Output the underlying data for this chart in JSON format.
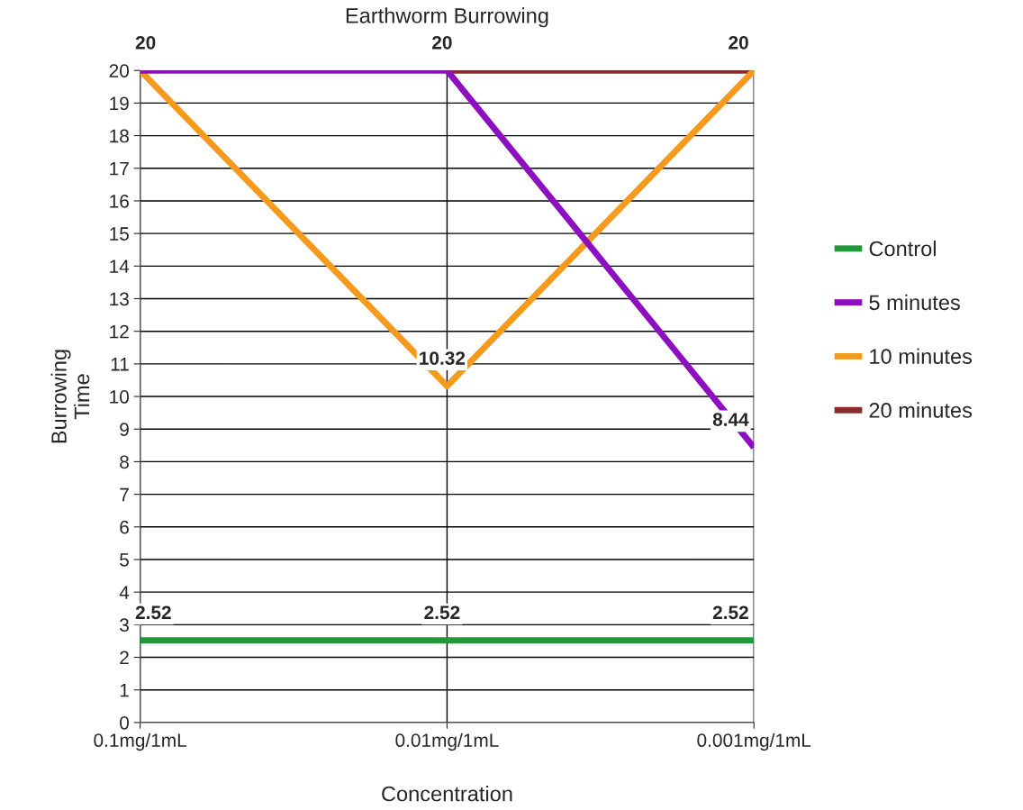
{
  "chart_data": {
    "type": "line",
    "title": "Earthworm Burrowing",
    "xlabel": "Concentration",
    "ylabel": "Burrowing\nTime",
    "categories": [
      "0.1mg/1mL",
      "0.01mg/1mL",
      "0.001mg/1mL"
    ],
    "series": [
      {
        "name": "Control",
        "color": "#1e9a3c",
        "values": [
          2.52,
          2.52,
          2.52
        ],
        "value_labels": [
          "2.52",
          "2.52",
          "2.52"
        ]
      },
      {
        "name": "5 minutes",
        "color": "#8e0fc0",
        "values": [
          20,
          20,
          8.44
        ],
        "value_labels": [
          "20",
          null,
          "8.44"
        ]
      },
      {
        "name": "10 minutes",
        "color": "#f59a1c",
        "values": [
          20,
          10.32,
          20
        ],
        "value_labels": [
          null,
          "10.32",
          null
        ]
      },
      {
        "name": "20 minutes",
        "color": "#8b2a2a",
        "values": [
          null,
          20,
          20
        ],
        "value_labels": [
          null,
          "20",
          "20"
        ]
      }
    ],
    "ylim": [
      0,
      20
    ],
    "yticks": [
      0,
      1,
      2,
      3,
      4,
      5,
      6,
      7,
      8,
      9,
      10,
      11,
      12,
      13,
      14,
      15,
      16,
      17,
      18,
      19,
      20
    ],
    "grid": true,
    "legend": "right",
    "marker": "none",
    "line_style": "solid"
  }
}
